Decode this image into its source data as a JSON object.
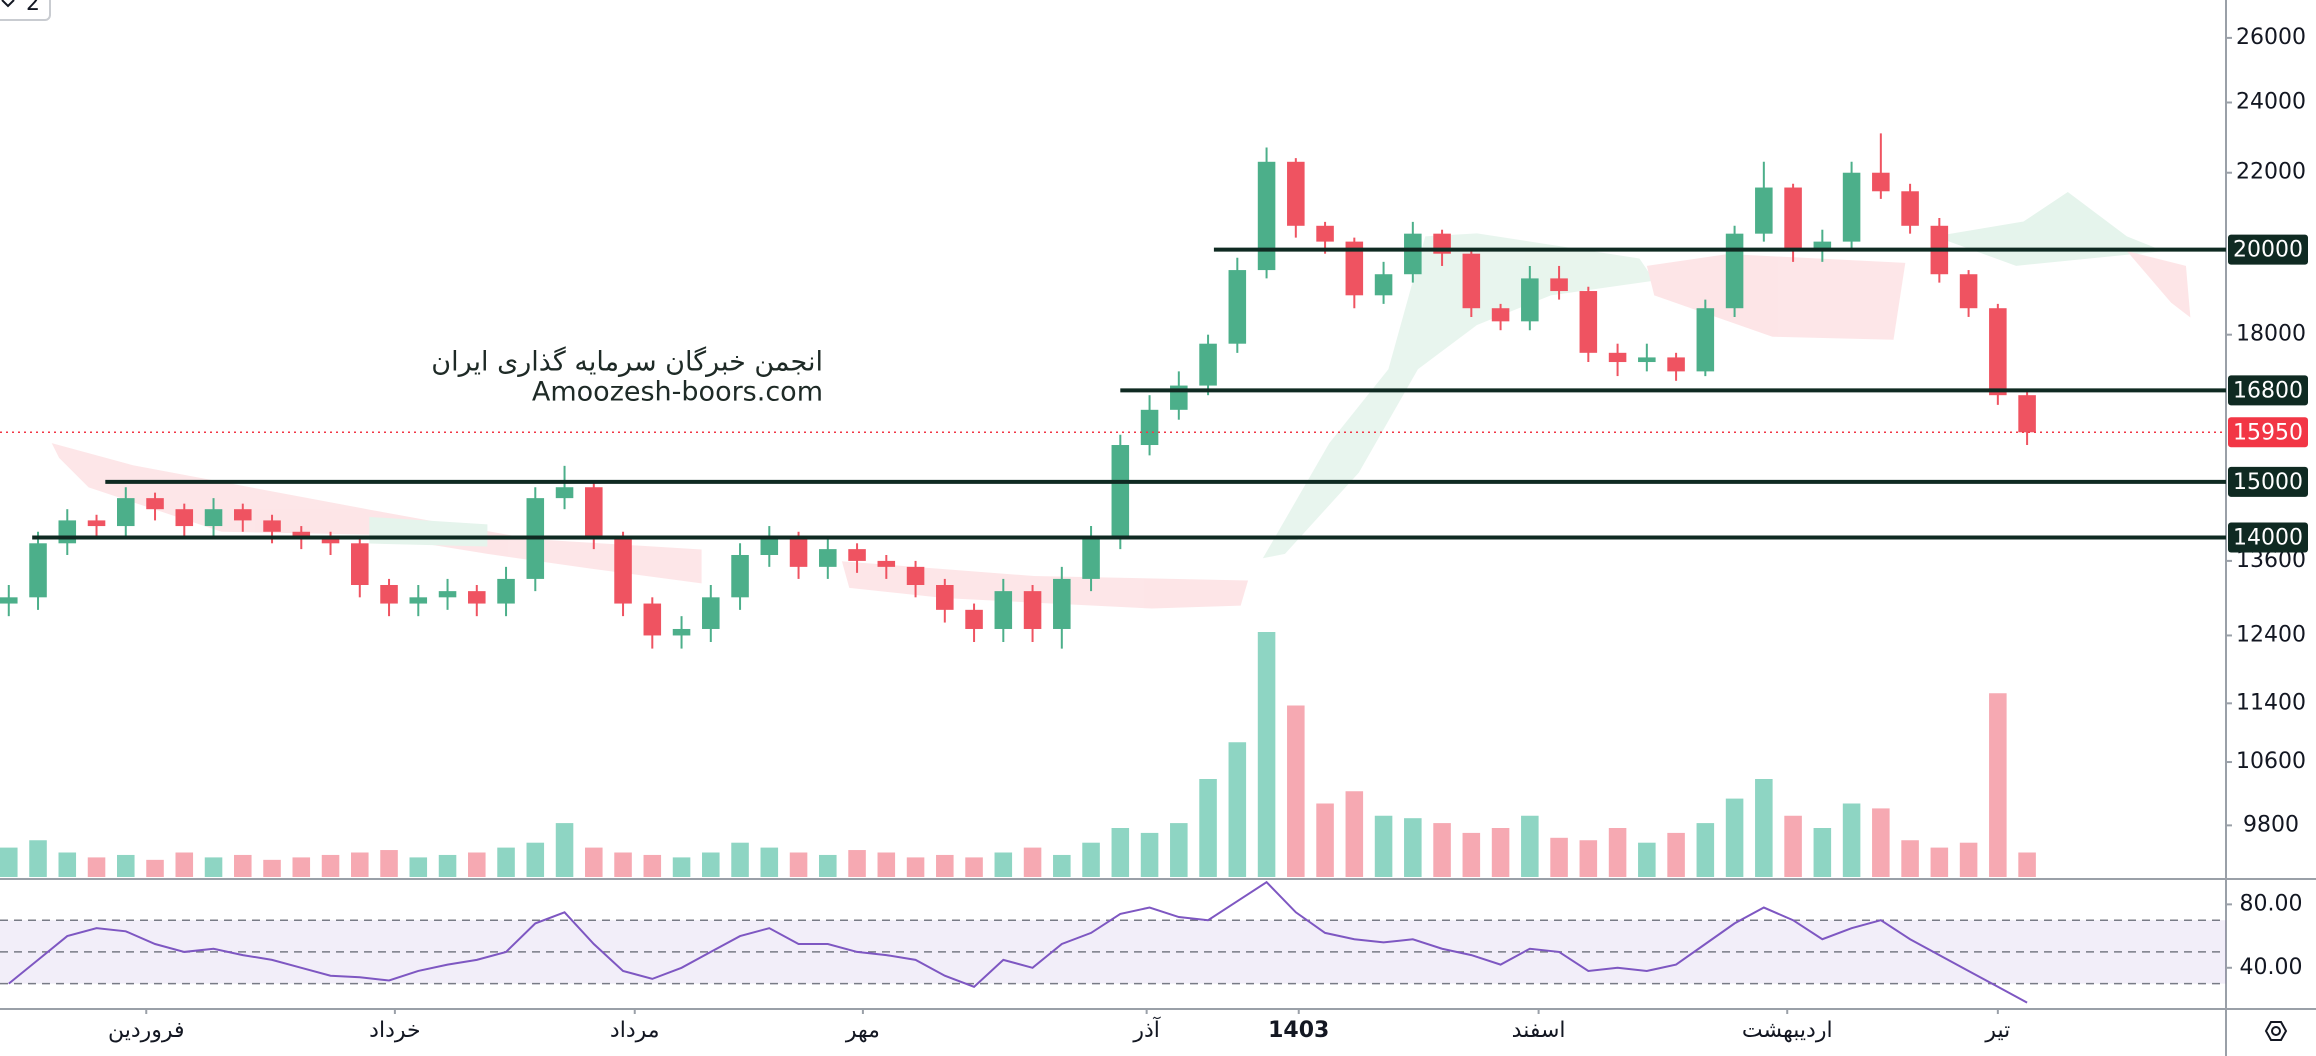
{
  "toolbar": {
    "interval": "2"
  },
  "chart_data": {
    "type": "candlestick",
    "watermark": [
      "انجمن خبرگان سرمایه گذاری ایران",
      "Amoozesh-boors.com"
    ],
    "open": [
      12900,
      13000,
      13900,
      14300,
      14200,
      14700,
      14500,
      14200,
      14500,
      14300,
      14100,
      14000,
      13900,
      13200,
      12900,
      13000,
      13100,
      12900,
      13300,
      14700,
      14900,
      14000,
      12900,
      12400,
      12500,
      13000,
      13700,
      14000,
      13500,
      13800,
      13600,
      13500,
      13200,
      12800,
      12500,
      13100,
      12500,
      13300,
      14000,
      15700,
      16400,
      16900,
      17800,
      19500,
      22300,
      20600,
      20200,
      18900,
      19400,
      20400,
      19900,
      18600,
      18300,
      19300,
      19000,
      17600,
      17400,
      17500,
      17200,
      18600,
      20400,
      21600,
      20000,
      20200,
      22000,
      21500,
      20600,
      19400,
      18600,
      16700
    ],
    "high": [
      13200,
      14100,
      14500,
      14400,
      14900,
      14800,
      14600,
      14700,
      14600,
      14400,
      14200,
      14100,
      14000,
      13300,
      13200,
      13300,
      13200,
      13500,
      14900,
      15300,
      15000,
      14100,
      13000,
      12700,
      13200,
      13900,
      14200,
      14100,
      14000,
      13900,
      13700,
      13600,
      13300,
      12900,
      13300,
      13200,
      13500,
      14200,
      15900,
      16700,
      17200,
      18000,
      19800,
      22700,
      22400,
      20700,
      20300,
      19700,
      20700,
      20500,
      20000,
      18700,
      19600,
      19600,
      19100,
      17800,
      17800,
      17600,
      18800,
      20600,
      22300,
      21700,
      20500,
      22300,
      23100,
      21700,
      20800,
      19500,
      18700,
      16800
    ],
    "low": [
      12700,
      12800,
      13700,
      14000,
      14000,
      14300,
      14000,
      14000,
      14100,
      13900,
      13800,
      13700,
      13000,
      12700,
      12700,
      12800,
      12700,
      12700,
      13100,
      14500,
      13800,
      12700,
      12200,
      12200,
      12300,
      12800,
      13500,
      13300,
      13300,
      13400,
      13300,
      13000,
      12600,
      12300,
      12300,
      12300,
      12200,
      13100,
      13800,
      15500,
      16200,
      16700,
      17600,
      19300,
      20300,
      19900,
      18600,
      18700,
      19200,
      19600,
      18400,
      18100,
      18100,
      18800,
      17400,
      17100,
      17200,
      17000,
      17100,
      18400,
      20200,
      19700,
      19700,
      20000,
      21300,
      20400,
      19200,
      18400,
      16500,
      15700
    ],
    "close": [
      13000,
      13900,
      14300,
      14200,
      14700,
      14500,
      14200,
      14500,
      14300,
      14100,
      14000,
      13900,
      13200,
      12900,
      13000,
      13100,
      12900,
      13300,
      14700,
      14900,
      14000,
      12900,
      12400,
      12500,
      13000,
      13700,
      14000,
      13500,
      13800,
      13600,
      13500,
      13200,
      12800,
      12500,
      13100,
      12500,
      13300,
      14000,
      15700,
      16400,
      16900,
      17800,
      19500,
      22300,
      20600,
      20200,
      18900,
      19400,
      20400,
      19900,
      18600,
      18300,
      19300,
      19000,
      17600,
      17400,
      17500,
      17200,
      18600,
      20400,
      21600,
      20000,
      20200,
      22000,
      21500,
      20600,
      19400,
      18600,
      16700,
      15950
    ],
    "up_color": "#4caf8a",
    "down_color": "#ef5361",
    "log_scale": true,
    "xlim": [
      -0.3,
      75.8
    ],
    "ylim": [
      9170,
      27250
    ],
    "yticks": [
      9800,
      10600,
      11400,
      12400,
      13600,
      18000,
      22000,
      24000,
      26000
    ],
    "grid": false,
    "levels": [
      {
        "value": 20000,
        "start": 41.2
      },
      {
        "value": 16800,
        "start": 38
      },
      {
        "value": 15000,
        "start": 3.3
      },
      {
        "value": 14000,
        "start": 0.8
      }
    ],
    "level_color": "#0f2a22",
    "last_price": 15950,
    "last_price_color": "#f23645",
    "volume": {
      "values": [
        12,
        15,
        10,
        8,
        9,
        7,
        10,
        8,
        9,
        7,
        8,
        9,
        10,
        11,
        8,
        9,
        10,
        12,
        14,
        22,
        12,
        10,
        9,
        8,
        10,
        14,
        12,
        10,
        9,
        11,
        10,
        8,
        9,
        8,
        10,
        12,
        9,
        14,
        20,
        18,
        22,
        40,
        55,
        100,
        70,
        30,
        35,
        25,
        24,
        22,
        18,
        20,
        25,
        16,
        15,
        20,
        14,
        18,
        22,
        32,
        40,
        25,
        20,
        30,
        28,
        15,
        12,
        14,
        75,
        10
      ],
      "ylim": [
        0,
        100
      ],
      "up_color": "#8ed5c3",
      "down_color": "#f6a9b2"
    },
    "rsi": {
      "values": [
        30,
        45,
        60,
        65,
        63,
        55,
        50,
        52,
        48,
        45,
        40,
        35,
        34,
        32,
        38,
        42,
        45,
        50,
        68,
        75,
        55,
        38,
        33,
        40,
        50,
        60,
        65,
        55,
        55,
        50,
        48,
        45,
        35,
        28,
        45,
        40,
        55,
        62,
        74,
        78,
        72,
        70,
        82,
        94,
        75,
        62,
        58,
        56,
        58,
        52,
        48,
        42,
        52,
        50,
        38,
        40,
        38,
        42,
        55,
        68,
        78,
        70,
        58,
        65,
        70,
        58,
        48,
        38,
        28,
        18
      ],
      "ylim": [
        14,
        96
      ],
      "yticks": [
        {
          "value": 80,
          "label": "80.00"
        },
        {
          "value": 40,
          "label": "40.00"
        }
      ],
      "levels": [
        30,
        50,
        70
      ],
      "color": "#7e57c2"
    },
    "xticks": [
      {
        "value": 4.7,
        "label": "فروردین"
      },
      {
        "value": 13.2,
        "label": "خرداد"
      },
      {
        "value": 21.4,
        "label": "مرداد"
      },
      {
        "value": 29.2,
        "label": "مهر"
      },
      {
        "value": 38.9,
        "label": "آذر"
      },
      {
        "value": 44.1,
        "label": "1403",
        "bold": true
      },
      {
        "value": 52.3,
        "label": "اسفند"
      },
      {
        "value": 60.8,
        "label": "اردیبهشت"
      },
      {
        "value": 68,
        "label": "تیر"
      }
    ]
  }
}
